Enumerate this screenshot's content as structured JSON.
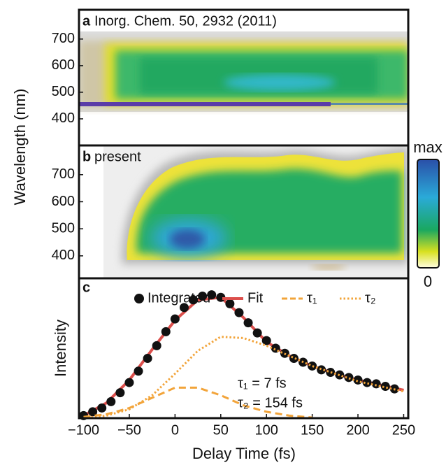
{
  "chart_data": [
    {
      "type": "heatmap",
      "panel": "a",
      "title": "Inorg. Chem. 50, 2932 (2011)",
      "ylabel": "Wavelength (nm)",
      "ylim": [
        300,
        810
      ],
      "yticks": [
        400,
        500,
        600,
        700
      ]
    },
    {
      "type": "heatmap",
      "panel": "b",
      "title": "present",
      "ylim": [
        317,
        808
      ],
      "yticks": [
        400,
        500,
        600,
        700
      ],
      "colorbar": {
        "max_label": "max",
        "min_label": "0"
      }
    },
    {
      "type": "line",
      "panel": "c",
      "xlabel": "Delay Time (fs)",
      "ylabel": "Intensity",
      "xlim": [
        -105,
        255
      ],
      "xticks": [
        {
          "value": -100,
          "label": "−100"
        },
        {
          "value": -50,
          "label": "−50"
        },
        0,
        50,
        100,
        150,
        200,
        250
      ],
      "ylim": [
        0,
        1.1
      ],
      "annotations": [
        "τ₁ = 7 fs",
        "τ₂ = 154 fs"
      ],
      "series": [
        {
          "name": "Integrated",
          "style": "points",
          "color": "#111111",
          "x": [
            -100,
            -90,
            -80,
            -70,
            -60,
            -50,
            -40,
            -30,
            -20,
            -10,
            0,
            10,
            20,
            30,
            40,
            50,
            60,
            70,
            80,
            90,
            100,
            110,
            120,
            130,
            140,
            150,
            160,
            170,
            180,
            190,
            200,
            210,
            220,
            230,
            240
          ],
          "values": [
            0.02,
            0.05,
            0.08,
            0.13,
            0.2,
            0.28,
            0.37,
            0.47,
            0.57,
            0.68,
            0.78,
            0.87,
            0.93,
            0.96,
            0.97,
            0.95,
            0.9,
            0.83,
            0.75,
            0.67,
            0.61,
            0.55,
            0.51,
            0.47,
            0.44,
            0.41,
            0.38,
            0.36,
            0.34,
            0.32,
            0.3,
            0.28,
            0.27,
            0.25,
            0.23
          ]
        },
        {
          "name": "Fit",
          "style": "solid",
          "color": "#dc4f4c",
          "x": [
            -100,
            -75,
            -50,
            -25,
            0,
            25,
            50,
            75,
            100,
            125,
            150,
            175,
            200,
            225,
            250
          ],
          "values": [
            0.02,
            0.12,
            0.3,
            0.54,
            0.77,
            0.93,
            0.95,
            0.79,
            0.6,
            0.49,
            0.41,
            0.35,
            0.3,
            0.26,
            0.22
          ]
        },
        {
          "name": "τ₁",
          "style": "dashed",
          "color": "#f2a43a",
          "x": [
            -100,
            -75,
            -50,
            -25,
            0,
            25,
            50,
            75,
            100,
            125,
            150
          ],
          "values": [
            0.01,
            0.03,
            0.08,
            0.16,
            0.24,
            0.24,
            0.18,
            0.1,
            0.05,
            0.02,
            0.005
          ]
        },
        {
          "name": "τ₂",
          "style": "dotted",
          "color": "#f2a43a",
          "x": [
            -100,
            -75,
            -50,
            -25,
            0,
            25,
            50,
            75,
            100,
            125,
            150,
            175,
            200,
            225,
            250
          ],
          "values": [
            0,
            0.02,
            0.07,
            0.18,
            0.35,
            0.53,
            0.64,
            0.63,
            0.57,
            0.49,
            0.41,
            0.35,
            0.29,
            0.25,
            0.21
          ]
        }
      ]
    }
  ]
}
